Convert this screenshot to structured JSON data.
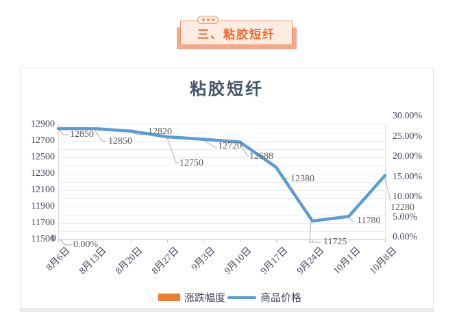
{
  "header": {
    "badge": "三、粘胶短纤"
  },
  "chart": {
    "title": "粘胶短纤",
    "left_axis_ticks": [
      "12900",
      "12700",
      "12500",
      "12300",
      "12100",
      "11900",
      "11700",
      "11500"
    ],
    "right_axis_ticks": [
      "30.00%",
      "25.00%",
      "20.00%",
      "15.00%",
      "10.00%",
      "5.00%",
      "0.00%"
    ],
    "x_labels": [
      "8月6日",
      "8月13日",
      "8月20日",
      "8月27日",
      "9月3日",
      "9月10日",
      "9月17日",
      "9月24日",
      "10月1日",
      "10月8日"
    ]
  },
  "legend": {
    "items": [
      {
        "label": "涨跌幅度",
        "color": "#ed7d31",
        "marker": "bar"
      },
      {
        "label": "商品价格",
        "color": "#5b9bd5",
        "marker": "line"
      }
    ]
  },
  "extra": {
    "zero_label": "0",
    "change_label": "0.00%"
  },
  "chart_data": {
    "type": "line",
    "title": "粘胶短纤",
    "categories": [
      "8月6日",
      "8月13日",
      "8月20日",
      "8月27日",
      "9月3日",
      "9月10日",
      "9月17日",
      "9月24日",
      "10月1日",
      "10月8日"
    ],
    "series": [
      {
        "name": "商品价格",
        "type": "line",
        "axis": "left",
        "color": "#5b9bd5",
        "values": [
          12850,
          12850,
          12820,
          12750,
          12720,
          12688,
          12380,
          11725,
          11780,
          12280
        ]
      },
      {
        "name": "涨跌幅度",
        "type": "bar",
        "axis": "right",
        "color": "#ed7d31",
        "visible_values": {
          "8月6日": "0.00%"
        }
      }
    ],
    "left_axis": {
      "label": "",
      "min": 11500,
      "max": 12900,
      "step": 200
    },
    "right_axis": {
      "label": "",
      "min": 0,
      "max": 30,
      "step": 5,
      "format": "percent"
    },
    "grid": true,
    "legend_position": "bottom",
    "data_labels": true
  }
}
